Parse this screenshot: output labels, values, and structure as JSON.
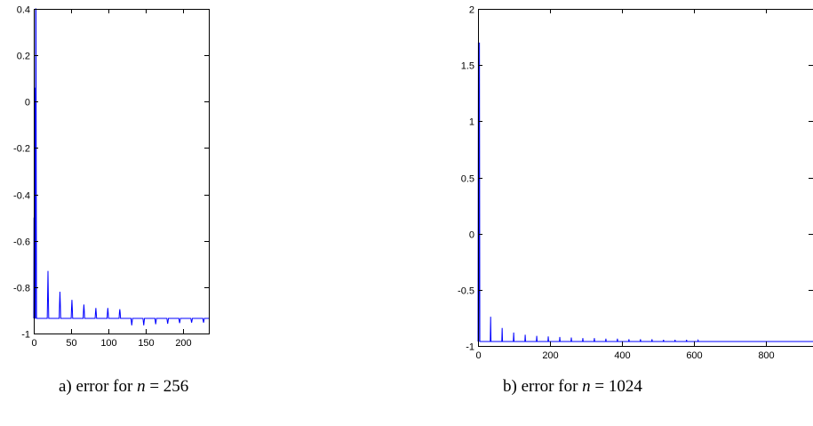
{
  "chart_data": [
    {
      "type": "line",
      "caption": {
        "prefix": "a) error for ",
        "var": "n",
        "suffix": " = 256"
      },
      "xlim": [
        0,
        234
      ],
      "ylim": [
        -1,
        0.4
      ],
      "xticks": [
        0,
        50,
        100,
        150,
        200
      ],
      "xtick_labels": [
        "0",
        "50",
        "100",
        "150",
        "200"
      ],
      "yticks": [
        -1,
        -0.8,
        -0.6,
        -0.4,
        -0.2,
        0,
        0.2,
        0.4
      ],
      "ytick_labels": [
        "-1",
        "-0.8",
        "-0.6",
        "-0.4",
        "-0.2",
        "0",
        "0.2",
        "0.4"
      ],
      "baseline": -0.935,
      "color": "#0000ff",
      "series": [
        {
          "x": [
            0,
            0.3,
            0.6,
            1.2,
            1.6,
            2,
            2.3,
            2.6,
            3,
            3.3,
            3.7,
            4,
            18,
            18.5,
            19,
            19.5,
            20,
            34,
            34.5,
            35,
            35.5,
            36,
            50,
            50.5,
            51,
            51.5,
            52,
            66,
            66.5,
            67,
            67.5,
            68,
            82,
            82.5,
            83,
            83.5,
            84,
            98,
            98.5,
            99,
            99.5,
            100,
            114,
            114.5,
            115,
            115.5,
            116,
            130,
            130.5,
            131,
            131.5,
            132,
            146,
            146.5,
            147,
            147.5,
            148,
            162,
            162.5,
            163,
            163.5,
            164,
            178,
            178.5,
            179,
            179.5,
            180,
            194,
            194.5,
            195,
            195.5,
            196,
            210,
            210.5,
            211,
            211.5,
            212,
            226,
            226.5,
            227,
            227.5,
            228,
            234
          ],
          "y": [
            -0.935,
            -0.5,
            -0.935,
            -0.935,
            -0.2,
            0.06,
            -0.935,
            0.4,
            0.4,
            -0.28,
            -0.935,
            -0.935,
            -0.935,
            -0.84,
            -0.73,
            -0.84,
            -0.935,
            -0.935,
            -0.87,
            -0.82,
            -0.87,
            -0.935,
            -0.935,
            -0.89,
            -0.855,
            -0.89,
            -0.935,
            -0.935,
            -0.9,
            -0.875,
            -0.9,
            -0.935,
            -0.935,
            -0.91,
            -0.89,
            -0.91,
            -0.935,
            -0.935,
            -0.91,
            -0.89,
            -0.91,
            -0.935,
            -0.935,
            -0.91,
            -0.895,
            -0.91,
            -0.935,
            -0.935,
            -0.95,
            -0.965,
            -0.95,
            -0.935,
            -0.935,
            -0.95,
            -0.965,
            -0.95,
            -0.935,
            -0.935,
            -0.948,
            -0.96,
            -0.948,
            -0.935,
            -0.935,
            -0.948,
            -0.958,
            -0.948,
            -0.935,
            -0.935,
            -0.946,
            -0.955,
            -0.946,
            -0.935,
            -0.935,
            -0.945,
            -0.953,
            -0.945,
            -0.935,
            -0.935,
            -0.945,
            -0.953,
            -0.945,
            -0.935,
            -0.935
          ]
        }
      ]
    },
    {
      "type": "line",
      "caption": {
        "prefix": "b) error for ",
        "var": "n",
        "suffix": " = 1024"
      },
      "xlim": [
        0,
        930
      ],
      "ylim": [
        -1,
        2
      ],
      "xticks": [
        0,
        200,
        400,
        600,
        800
      ],
      "xtick_labels": [
        "0",
        "200",
        "400",
        "600",
        "800"
      ],
      "yticks": [
        -1,
        -0.5,
        0,
        0.5,
        1,
        1.5,
        2
      ],
      "ytick_labels": [
        "-1",
        "-0.5",
        "0",
        "0.5",
        "1",
        "1.5",
        "2"
      ],
      "baseline": -0.96,
      "color": "#0000ff",
      "series": [
        {
          "x": [
            0,
            1,
            2,
            3,
            4,
            5,
            34,
            35,
            36,
            66,
            67,
            68,
            98,
            99,
            100,
            130,
            131,
            132,
            162,
            163,
            164,
            194,
            195,
            196,
            226,
            227,
            228,
            258,
            259,
            260,
            290,
            291,
            292,
            322,
            323,
            324,
            354,
            355,
            356,
            386,
            387,
            388,
            418,
            419,
            420,
            450,
            451,
            452,
            482,
            483,
            484,
            514,
            515,
            516,
            546,
            547,
            548,
            578,
            579,
            580,
            610,
            611,
            612,
            930
          ],
          "y": [
            -0.96,
            1.7,
            -0.96,
            0.2,
            1.7,
            -0.96,
            -0.96,
            -0.74,
            -0.96,
            -0.96,
            -0.84,
            -0.96,
            -0.96,
            -0.88,
            -0.96,
            -0.96,
            -0.9,
            -0.96,
            -0.96,
            -0.91,
            -0.96,
            -0.96,
            -0.915,
            -0.96,
            -0.96,
            -0.92,
            -0.96,
            -0.96,
            -0.925,
            -0.96,
            -0.96,
            -0.93,
            -0.96,
            -0.96,
            -0.93,
            -0.96,
            -0.96,
            -0.935,
            -0.96,
            -0.96,
            -0.935,
            -0.96,
            -0.96,
            -0.94,
            -0.96,
            -0.96,
            -0.94,
            -0.96,
            -0.96,
            -0.94,
            -0.96,
            -0.96,
            -0.945,
            -0.96,
            -0.96,
            -0.945,
            -0.96,
            -0.96,
            -0.945,
            -0.96,
            -0.96,
            -0.95,
            -0.96,
            -0.96
          ]
        }
      ]
    }
  ]
}
